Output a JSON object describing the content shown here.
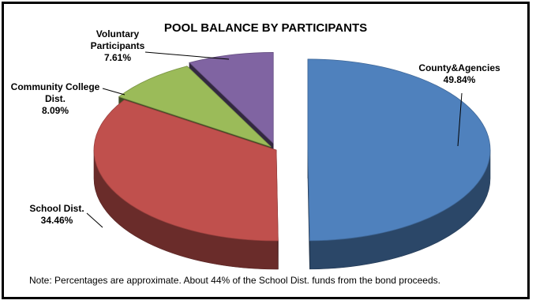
{
  "chart_data": {
    "type": "pie",
    "title": "POOL BALANCE BY PARTICIPANTS",
    "slices": [
      {
        "name": "County&Agencies",
        "value": 49.84,
        "label": "49.84%",
        "color": "#4f81bd"
      },
      {
        "name": "School Dist.",
        "value": 34.46,
        "label": "34.46%",
        "color": "#c0504d"
      },
      {
        "name": "Community College Dist.",
        "value": 8.09,
        "label": "8.09%",
        "color": "#9bbb59"
      },
      {
        "name": "Voluntary Participants",
        "value": 7.61,
        "label": "7.61%",
        "color": "#8064a2"
      }
    ],
    "exploded": true,
    "three_d": true
  },
  "note": "Note: Percentages are approximate. About 44% of the School Dist. funds from the bond proceeds."
}
